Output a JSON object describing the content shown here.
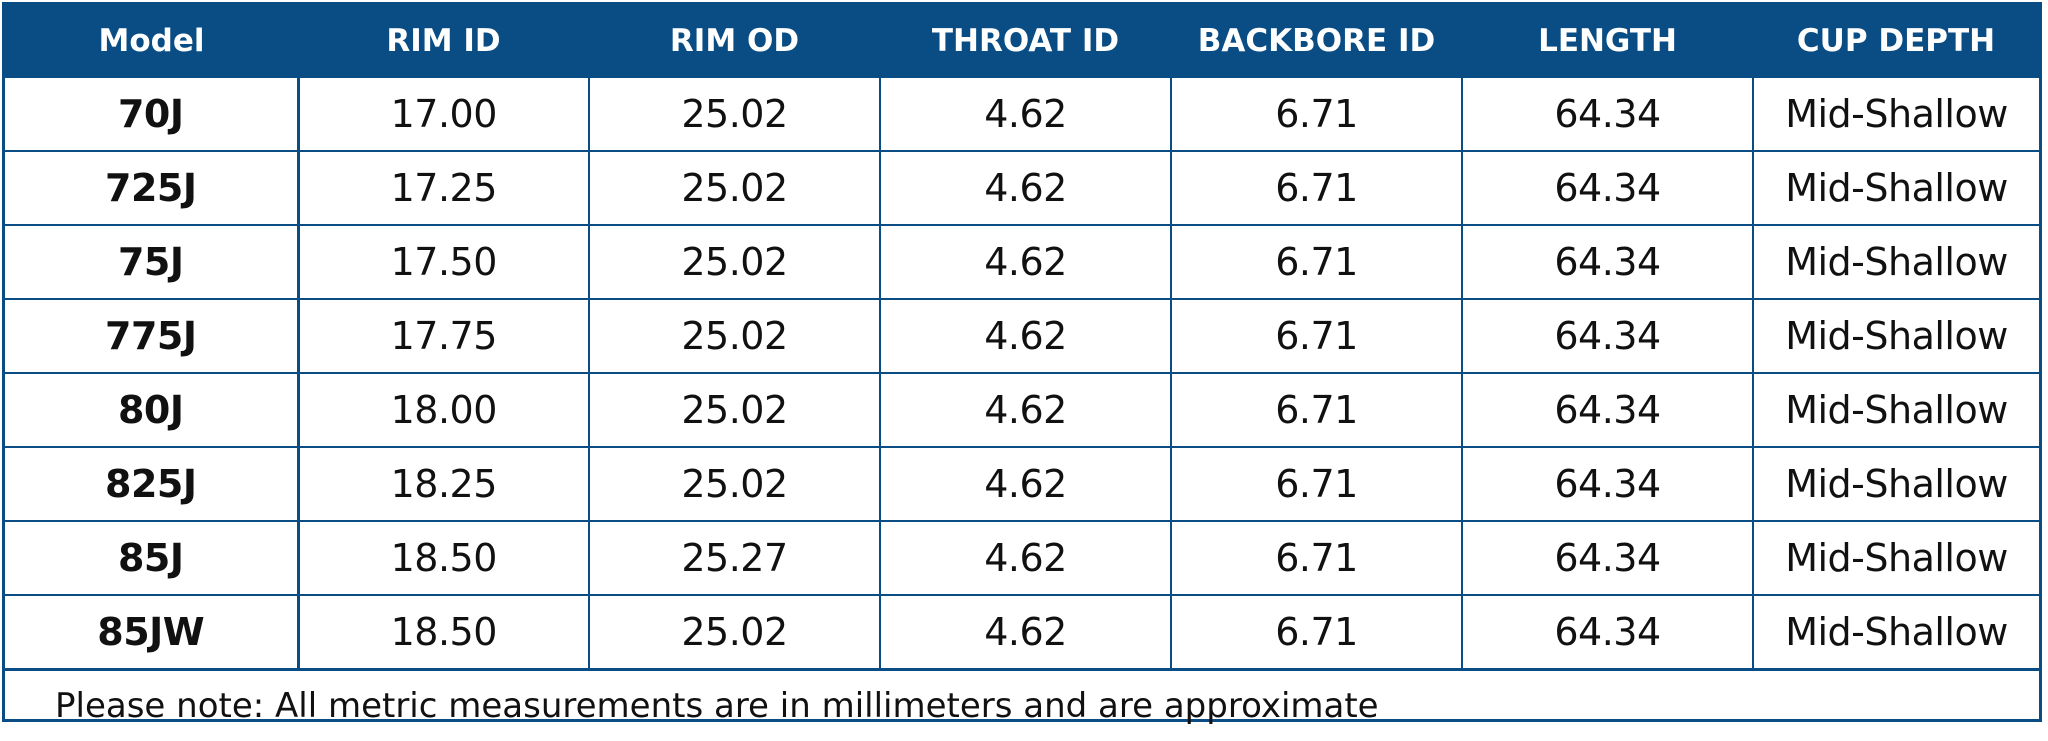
{
  "table": {
    "headers": [
      "Model",
      "RIM ID",
      "RIM OD",
      "THROAT ID",
      "BACKBORE ID",
      "LENGTH",
      "CUP DEPTH"
    ],
    "rows": [
      [
        "70J",
        "17.00",
        "25.02",
        "4.62",
        "6.71",
        "64.34",
        "Mid-Shallow"
      ],
      [
        "725J",
        "17.25",
        "25.02",
        "4.62",
        "6.71",
        "64.34",
        "Mid-Shallow"
      ],
      [
        "75J",
        "17.50",
        "25.02",
        "4.62",
        "6.71",
        "64.34",
        "Mid-Shallow"
      ],
      [
        "775J",
        "17.75",
        "25.02",
        "4.62",
        "6.71",
        "64.34",
        "Mid-Shallow"
      ],
      [
        "80J",
        "18.00",
        "25.02",
        "4.62",
        "6.71",
        "64.34",
        "Mid-Shallow"
      ],
      [
        "825J",
        "18.25",
        "25.02",
        "4.62",
        "6.71",
        "64.34",
        "Mid-Shallow"
      ],
      [
        "85J",
        "18.50",
        "25.27",
        "4.62",
        "6.71",
        "64.34",
        "Mid-Shallow"
      ],
      [
        "85JW",
        "18.50",
        "25.02",
        "4.62",
        "6.71",
        "64.34",
        "Mid-Shallow"
      ]
    ]
  },
  "note": "Please note: All metric measurements are in millimeters and are approximate",
  "colors": {
    "header_background": "#0a4d84",
    "header_text": "#ffffff",
    "border": "#0a4d84"
  }
}
